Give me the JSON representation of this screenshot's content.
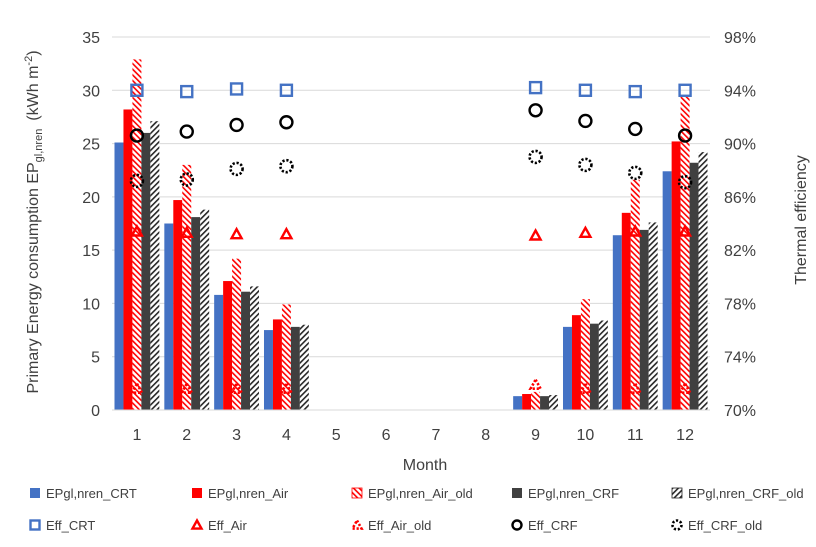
{
  "chart_data": {
    "type": "bar",
    "categories": [
      "1",
      "2",
      "3",
      "4",
      "5",
      "6",
      "7",
      "8",
      "9",
      "10",
      "11",
      "12"
    ],
    "xlabel": "Month",
    "ylabel_main": "Primary Energy consumption  EP",
    "ylabel_sub": "gl,nren",
    "ylabel_unit": "(kWh m",
    "ylabel_unit_sup": "-2",
    "ylabel_unit_close": ")",
    "y2label": "Thermal efficiency",
    "ylim": [
      0,
      35
    ],
    "y2lim": [
      0.7,
      0.98
    ],
    "yticks": [
      "0",
      "5",
      "10",
      "15",
      "20",
      "25",
      "30",
      "35"
    ],
    "y2ticks": [
      "70%",
      "74%",
      "78%",
      "82%",
      "86%",
      "90%",
      "94%",
      "98%"
    ],
    "grid": true,
    "legend_position": "bottom",
    "bar_series": [
      {
        "name": "EPgl,nren_CRT",
        "color": "#4472C4",
        "style": "solid",
        "values": [
          25.1,
          17.5,
          10.8,
          7.5,
          0,
          0,
          0,
          0,
          1.3,
          7.8,
          16.4,
          22.4
        ]
      },
      {
        "name": "EPgl,nren_Air",
        "color": "#FF0000",
        "style": "solid",
        "values": [
          28.2,
          19.7,
          12.1,
          8.5,
          0,
          0,
          0,
          0,
          1.5,
          8.9,
          18.5,
          25.2
        ]
      },
      {
        "name": "EPgl,nren_Air_old",
        "color": "#FF0000",
        "style": "hatch",
        "values": [
          32.9,
          23.0,
          14.2,
          9.9,
          0,
          0,
          0,
          0,
          1.7,
          10.4,
          21.6,
          29.4
        ]
      },
      {
        "name": "EPgl,nren_CRF",
        "color": "#404040",
        "style": "solid",
        "values": [
          26.0,
          18.1,
          11.1,
          7.8,
          0,
          0,
          0,
          0,
          1.3,
          8.1,
          16.9,
          23.2
        ]
      },
      {
        "name": "EPgl,nren_CRF_old",
        "color": "#262626",
        "style": "hatch",
        "values": [
          27.1,
          18.8,
          11.6,
          8.0,
          0,
          0,
          0,
          0,
          1.4,
          8.4,
          17.6,
          24.2
        ]
      }
    ],
    "marker_series": [
      {
        "name": "Eff_CRT",
        "marker": "square",
        "color": "#4472C4",
        "style": "solid",
        "values": [
          0.94,
          0.939,
          0.941,
          0.94,
          null,
          null,
          null,
          null,
          0.942,
          0.94,
          0.939,
          0.94
        ]
      },
      {
        "name": "Eff_Air",
        "marker": "triangle",
        "color": "#FF0000",
        "style": "solid",
        "values": [
          0.834,
          0.833,
          0.832,
          0.832,
          null,
          null,
          null,
          null,
          0.831,
          0.833,
          0.834,
          0.834
        ]
      },
      {
        "name": "Eff_Air_old",
        "marker": "triangle",
        "color": "#FF0000",
        "style": "dotted",
        "values": [
          0.716,
          0.716,
          0.716,
          0.716,
          null,
          null,
          null,
          null,
          0.719,
          0.716,
          0.716,
          0.716
        ]
      },
      {
        "name": "Eff_CRF",
        "marker": "circle",
        "color": "#000000",
        "style": "solid",
        "values": [
          0.906,
          0.909,
          0.914,
          0.916,
          null,
          null,
          null,
          null,
          0.925,
          0.917,
          0.911,
          0.906
        ]
      },
      {
        "name": "Eff_CRF_old",
        "marker": "circle",
        "color": "#000000",
        "style": "dotted",
        "values": [
          0.872,
          0.873,
          0.881,
          0.883,
          null,
          null,
          null,
          null,
          0.89,
          0.884,
          0.878,
          0.871
        ]
      }
    ]
  }
}
